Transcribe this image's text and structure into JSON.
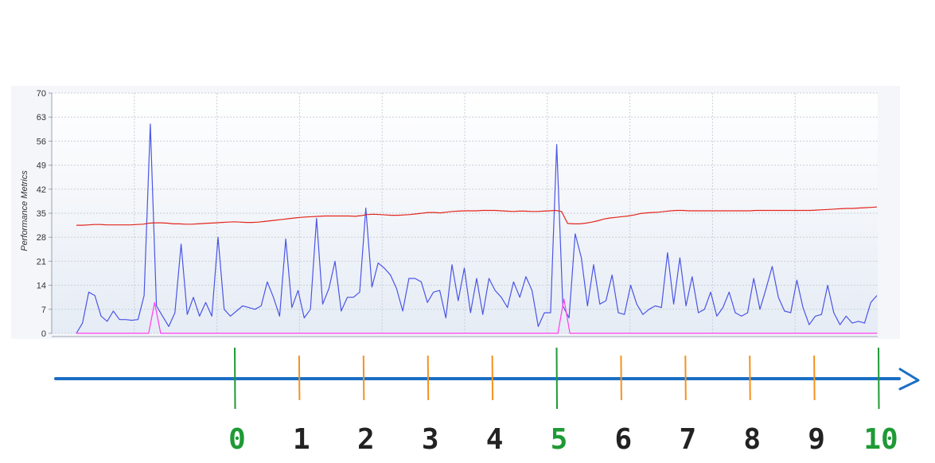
{
  "chart_data": {
    "type": "line",
    "title": "",
    "xlabel": "",
    "ylabel": "Performance Metrics",
    "ylim": [
      0,
      70
    ],
    "yticks": [
      0,
      7,
      14,
      21,
      28,
      35,
      42,
      49,
      56,
      63,
      70
    ],
    "grid": true,
    "series": [
      {
        "color": "#4a55e6",
        "values": [
          0,
          3,
          12,
          11,
          5,
          3.5,
          6.5,
          4,
          4,
          3.8,
          4,
          11,
          61,
          8,
          5,
          2,
          6,
          26,
          5.5,
          10.5,
          5,
          9,
          5,
          28,
          7,
          5,
          6.5,
          8,
          7.5,
          7,
          8,
          15,
          10.5,
          5,
          27.5,
          7.5,
          12.5,
          4.5,
          7,
          33.5,
          8.5,
          13,
          21,
          6.5,
          10.5,
          10.5,
          12,
          36.5,
          13.5,
          20.5,
          19,
          17,
          13,
          6.5,
          16,
          16,
          15,
          9,
          12,
          12.5,
          4.5,
          20,
          9.5,
          19,
          6,
          16,
          5.5,
          16,
          12.5,
          10.5,
          7.5,
          15,
          10.5,
          16.5,
          12.5,
          2,
          6,
          6,
          55,
          8,
          4.5,
          29,
          22,
          8,
          20,
          8.5,
          9.5,
          17,
          6,
          5.5,
          14,
          8.5,
          5.5,
          7,
          8,
          7.5,
          23.5,
          8.5,
          22,
          8,
          16.5,
          6,
          7,
          12,
          5,
          7.5,
          12,
          6,
          5,
          6,
          16,
          7,
          13,
          19.5,
          10.5,
          6.5,
          6,
          15.5,
          7.5,
          2.5,
          5,
          5.5,
          14,
          6,
          2.5,
          5,
          3,
          3.5,
          3,
          9,
          11
        ]
      },
      {
        "color": "#e3261c",
        "values": [
          31.5,
          31.5,
          31.6,
          31.7,
          31.7,
          31.6,
          31.6,
          31.6,
          31.6,
          31.6,
          31.7,
          31.8,
          32.1,
          32.2,
          32.2,
          32.1,
          31.9,
          31.9,
          31.8,
          31.8,
          31.9,
          32,
          32.1,
          32.2,
          32.3,
          32.4,
          32.5,
          32.4,
          32.3,
          32.3,
          32.4,
          32.6,
          32.8,
          33,
          33.2,
          33.4,
          33.6,
          33.8,
          33.9,
          34,
          34.1,
          34.2,
          34.2,
          34.2,
          34.2,
          34.2,
          34.1,
          34.3,
          34.6,
          34.7,
          34.6,
          34.5,
          34.4,
          34.4,
          34.5,
          34.6,
          34.8,
          35,
          35.2,
          35.2,
          35.1,
          35.3,
          35.5,
          35.6,
          35.7,
          35.7,
          35.7,
          35.8,
          35.8,
          35.8,
          35.7,
          35.6,
          35.5,
          35.6,
          35.6,
          35.5,
          35.5,
          35.6,
          35.7,
          35.8,
          35.5,
          32,
          31.9,
          31.9,
          32.1,
          32.4,
          32.8,
          33.3,
          33.6,
          33.8,
          34,
          34.2,
          34.5,
          34.9,
          35.1,
          35.2,
          35.3,
          35.5,
          35.7,
          35.8,
          35.8,
          35.7,
          35.7,
          35.7,
          35.7,
          35.7,
          35.7,
          35.7,
          35.7,
          35.7,
          35.7,
          35.7,
          35.8,
          35.8,
          35.8,
          35.8,
          35.8,
          35.8,
          35.8,
          35.8,
          35.8,
          35.8,
          35.9,
          36,
          36.1,
          36.2,
          36.3,
          36.4,
          36.4,
          36.5,
          36.6,
          36.7,
          36.8
        ]
      },
      {
        "color": "#ff3df0",
        "values": [
          0,
          0,
          0,
          0,
          0,
          0,
          0,
          0,
          0,
          0,
          0,
          0,
          0,
          9,
          0,
          0,
          0,
          0,
          0,
          0,
          0,
          0,
          0,
          0,
          0,
          0,
          0,
          0,
          0,
          0,
          0,
          0,
          0,
          0,
          0,
          0,
          0,
          0,
          0,
          0,
          0,
          0,
          0,
          0,
          0,
          0,
          0,
          0,
          0,
          0,
          0,
          0,
          0,
          0,
          0,
          0,
          0,
          0,
          0,
          0,
          0,
          0,
          0,
          0,
          0,
          0,
          0,
          0,
          0,
          0,
          0,
          0,
          0,
          0,
          0,
          0,
          0,
          0,
          0,
          0,
          0,
          10,
          0,
          0,
          0,
          0,
          0,
          0,
          0,
          0,
          0,
          0,
          0,
          0,
          0,
          0,
          0,
          0,
          0,
          0,
          0,
          0,
          0,
          0,
          0,
          0,
          0,
          0,
          0,
          0,
          0,
          0,
          0,
          0,
          0,
          0,
          0,
          0,
          0,
          0,
          0,
          0,
          0,
          0,
          0,
          0,
          0,
          0,
          0,
          0,
          0,
          0,
          0,
          0
        ]
      }
    ]
  },
  "timeline": {
    "labels": [
      "0",
      "1",
      "2",
      "3",
      "4",
      "5",
      "6",
      "7",
      "8",
      "9",
      "10"
    ],
    "major_color": "#1e9a35",
    "minor_color": "#f4921f",
    "arrow_color": "#1a6fc4",
    "label_color": "#222222"
  }
}
